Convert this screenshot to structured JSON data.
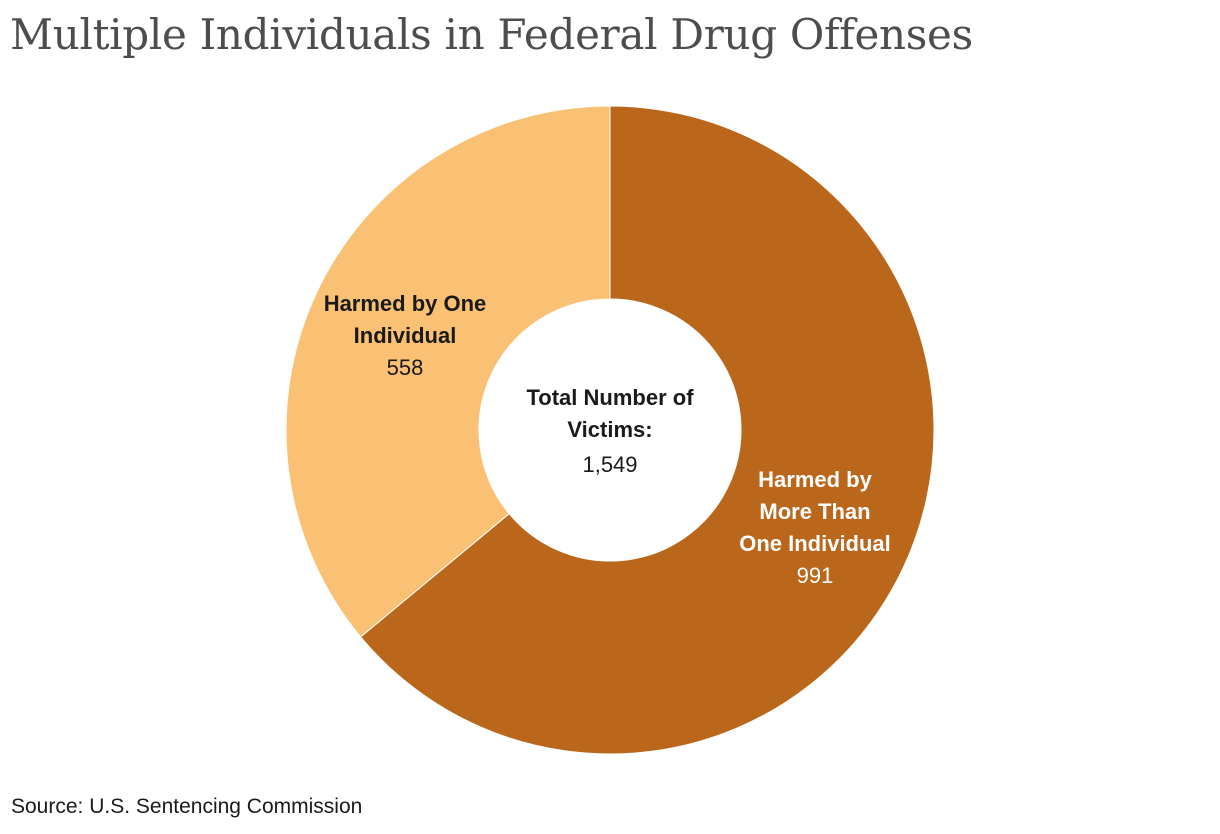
{
  "title": "Multiple Individuals in Federal Drug Offenses",
  "source": "Source: U.S. Sentencing Commission",
  "colors": {
    "dark_slice": "#bb671b",
    "light_slice": "#fac074",
    "title": "#4d4d4d",
    "label_dark": "#1a1a1a",
    "label_light": "#ffffff"
  },
  "chart_data": {
    "type": "pie",
    "subtype": "donut",
    "title": "Multiple Individuals in Federal Drug Offenses",
    "start": "12 o'clock, clockwise",
    "slices": [
      {
        "name": "Harmed by More Than One Individual",
        "label_lines": [
          "Harmed by",
          "More Than",
          "One Individual"
        ],
        "value": 991,
        "value_label": "991",
        "color": "#bb671b"
      },
      {
        "name": "Harmed by One Individual",
        "label_lines": [
          "Harmed by One",
          "Individual"
        ],
        "value": 558,
        "value_label": "558",
        "color": "#fac074"
      }
    ],
    "center": {
      "label_lines": [
        "Total Number of",
        "Victims:"
      ],
      "total": 1549,
      "total_label": "1,549"
    }
  }
}
